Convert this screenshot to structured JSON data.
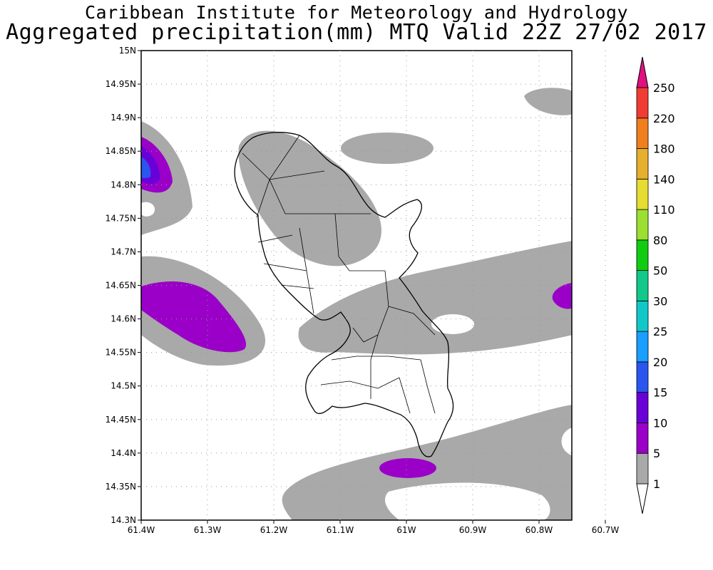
{
  "header": {
    "line1": "Caribbean Institute for Meteorology and Hydrology",
    "line2": "Aggregated precipitation(mm) MTQ Valid 22Z 27/02 2017"
  },
  "axes": {
    "lat_labels": [
      "15N",
      "14.95N",
      "14.9N",
      "14.85N",
      "14.8N",
      "14.75N",
      "14.7N",
      "14.65N",
      "14.6N",
      "14.55N",
      "14.5N",
      "14.45N",
      "14.4N",
      "14.35N",
      "14.3N"
    ],
    "lon_labels": [
      "61.4W",
      "61.3W",
      "61.2W",
      "61.1W",
      "61W",
      "60.9W",
      "60.8W",
      "60.7W"
    ],
    "lat_range": [
      14.3,
      15.0
    ],
    "lon_range": [
      -61.4,
      -60.75
    ]
  },
  "legend": {
    "levels": [
      "1",
      "5",
      "10",
      "15",
      "20",
      "25",
      "30",
      "50",
      "80",
      "110",
      "140",
      "180",
      "220",
      "250"
    ],
    "colors": [
      "#ffffff",
      "#a9a9a9",
      "#9a00c8",
      "#6a00d8",
      "#2a55ee",
      "#1a9eff",
      "#10c8c8",
      "#12c88a",
      "#12cc12",
      "#9be030",
      "#e6dc32",
      "#e6af2d",
      "#f07f1e",
      "#f03c32",
      "#e01080"
    ]
  },
  "map": {
    "region": "Martinique",
    "units": "mm",
    "gridlines": "dotted"
  }
}
